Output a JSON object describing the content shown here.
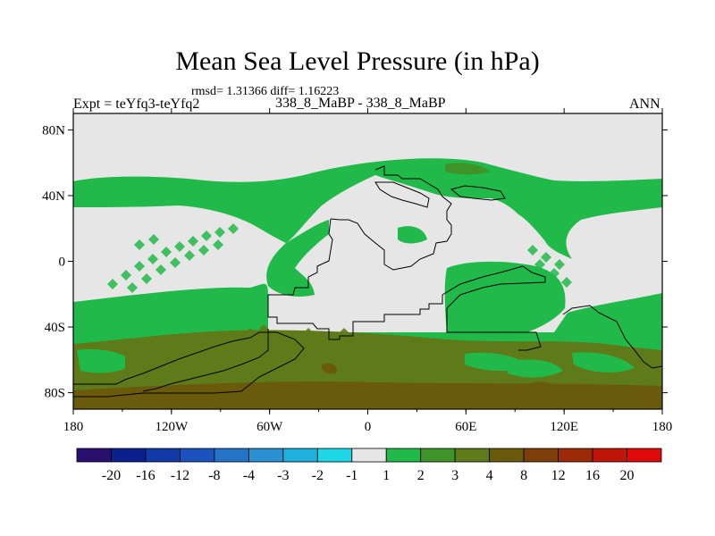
{
  "chart_data": {
    "type": "contour-map",
    "title": "Mean Sea Level Pressure (in hPa)",
    "stats_text": "rmsd= 1.31366 diff= 1.16223",
    "left_label": "Expt = teYfq3-teYfq2",
    "center_label": "338_8_MaBP - 338_8_MaBP",
    "right_label": "ANN",
    "x_ticks": [
      "180",
      "120W",
      "60W",
      "0",
      "60E",
      "120E",
      "180"
    ],
    "y_ticks": [
      "80N",
      "40N",
      "0",
      "40S",
      "80S"
    ],
    "xlim": [
      -180,
      180
    ],
    "ylim": [
      -90,
      90
    ],
    "colorbar_labels": [
      "-20",
      "-16",
      "-12",
      "-8",
      "-4",
      "-3",
      "-2",
      "-1",
      "1",
      "2",
      "3",
      "4",
      "8",
      "12",
      "16",
      "20"
    ],
    "colorbar_colors": [
      "#2a0f6e",
      "#0c1f8e",
      "#1139a8",
      "#1b52bd",
      "#2373c7",
      "#2a90d2",
      "#1fb0dd",
      "#1fd7e6",
      "#e6e6e6",
      "#21ba4a",
      "#3e9329",
      "#5e7a19",
      "#6a5a0c",
      "#7d3f0a",
      "#9c2a07",
      "#c01608",
      "#e00a0a"
    ],
    "fields": [
      {
        "name": "zero-band",
        "value_range": "-1 to 1"
      },
      {
        "name": "positive-1-2",
        "value_range": "1 to 2"
      },
      {
        "name": "positive-2-3",
        "value_range": "2 to 3"
      },
      {
        "name": "positive-3-4",
        "value_range": "3 to 4"
      },
      {
        "name": "positive-4-8",
        "value_range": "4 to 8"
      }
    ]
  }
}
